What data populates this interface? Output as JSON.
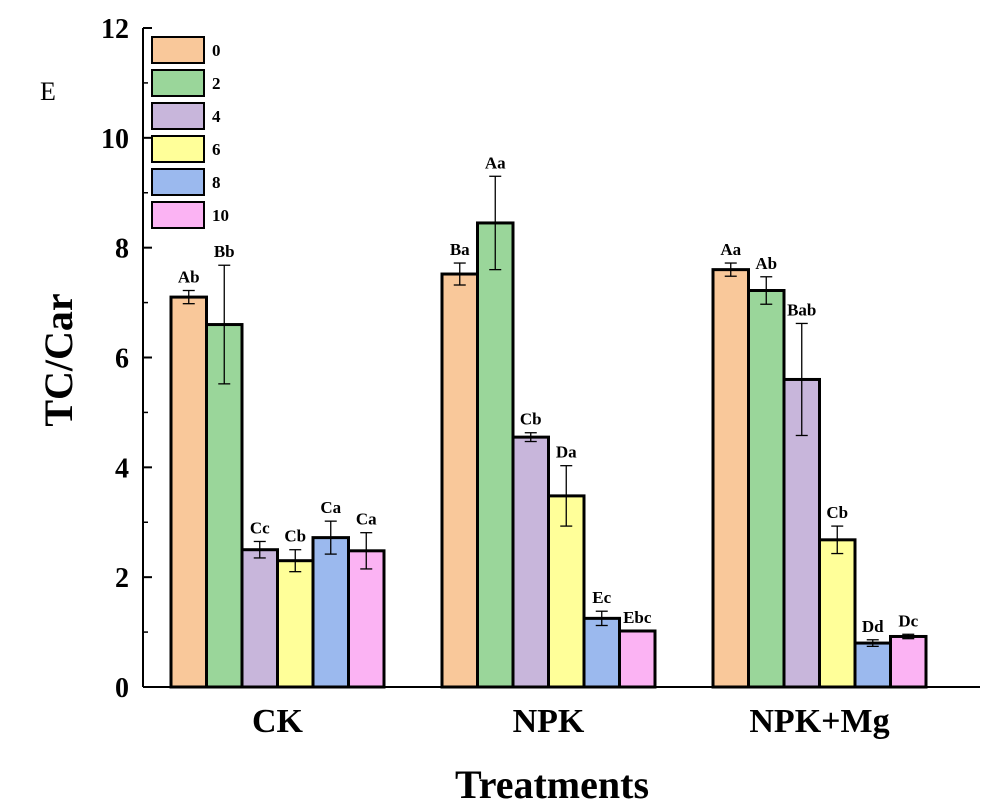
{
  "chart_data": {
    "type": "bar",
    "panel_label": "E",
    "xlabel": "Treatments",
    "ylabel": "TC/Car",
    "ylim": [
      0,
      12
    ],
    "yticks": [
      "0",
      "2",
      "4",
      "6",
      "8",
      "10",
      "12"
    ],
    "categories": [
      "CK",
      "NPK",
      "NPK+Mg"
    ],
    "legend_position": "top-left",
    "grid": false,
    "series": [
      {
        "name": "0",
        "color": "#F9C89A",
        "values": [
          7.1,
          7.52,
          7.6
        ],
        "errors": [
          0.12,
          0.2,
          0.12
        ],
        "labels": [
          "Ab",
          "Ba",
          "Aa"
        ]
      },
      {
        "name": "2",
        "color": "#9AD69A",
        "values": [
          6.6,
          8.45,
          7.22
        ],
        "errors": [
          1.08,
          0.85,
          0.25
        ],
        "labels": [
          "Bb",
          "Aa",
          "Ab"
        ]
      },
      {
        "name": "4",
        "color": "#C8B6DB",
        "values": [
          2.5,
          4.55,
          5.6
        ],
        "errors": [
          0.15,
          0.08,
          1.02
        ],
        "labels": [
          "Cc",
          "Cb",
          "Bab"
        ]
      },
      {
        "name": "6",
        "color": "#FFFF99",
        "values": [
          2.3,
          3.48,
          2.68
        ],
        "errors": [
          0.2,
          0.55,
          0.25
        ],
        "labels": [
          "Cb",
          "Da",
          "Cb"
        ]
      },
      {
        "name": "8",
        "color": "#9BB9EE",
        "values": [
          2.72,
          1.25,
          0.8
        ],
        "errors": [
          0.3,
          0.13,
          0.06
        ],
        "labels": [
          "Ca",
          "Ec",
          "Dd"
        ]
      },
      {
        "name": "10",
        "color": "#FBB3F3",
        "values": [
          2.48,
          1.02,
          0.92
        ],
        "errors": [
          0.33,
          0.0,
          0.04
        ],
        "labels": [
          "Ca",
          "Ebc",
          "Dc"
        ]
      }
    ]
  }
}
